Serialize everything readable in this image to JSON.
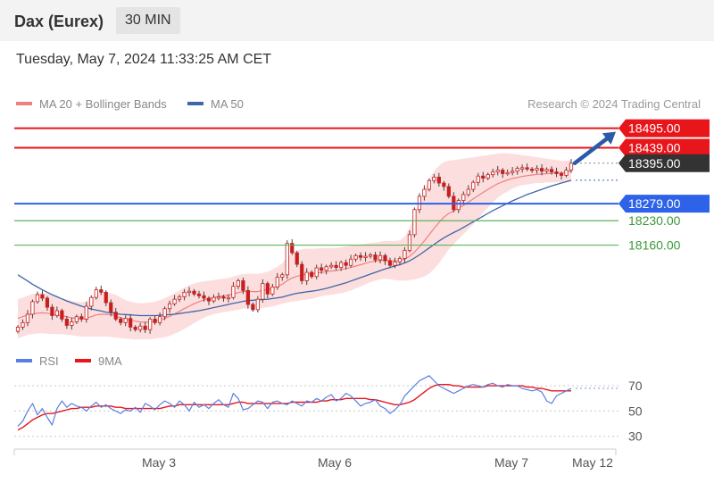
{
  "header": {
    "title": "Dax (Eurex)",
    "interval": "30 MIN"
  },
  "timestamp": "Tuesday, May 7, 2024 11:33:25 AM CET",
  "legend": {
    "ma20": "MA 20 + Bollinger Bands",
    "ma50": "MA 50",
    "rsi": "RSI",
    "rsi_ma": "9MA"
  },
  "credit": "Research © 2024 Trading Central",
  "colors": {
    "resistance": "#e8151b",
    "pivot": "#2e62e8",
    "support": "#5bb55b",
    "last_price": "#333333",
    "candle": "#c81e1e",
    "ma20": "#f08080",
    "ma50": "#3f66a8",
    "bollinger_fill": "#fbd3d3",
    "rsi": "#5b7fe0",
    "rsi_ma": "#e8151b",
    "arrow": "#2a5aa8"
  },
  "chart_data": [
    {
      "type": "candlestick",
      "title": "Dax (Eurex)",
      "x_ticks": [
        "May 3",
        "May 6",
        "May 7",
        "May 12"
      ],
      "ylim": [
        17880,
        18530
      ],
      "levels": [
        {
          "label": "18495.00",
          "value": 18495,
          "kind": "resistance",
          "style": "solid"
        },
        {
          "label": "18439.00",
          "value": 18439,
          "kind": "resistance",
          "style": "solid"
        },
        {
          "label": "18395.00",
          "value": 18395,
          "kind": "last",
          "style": "dotted"
        },
        {
          "label": "18279.00",
          "value": 18279,
          "kind": "pivot",
          "style": "solid"
        },
        {
          "label": "18230.00",
          "value": 18230,
          "kind": "support",
          "style": "solid"
        },
        {
          "label": "18160.00",
          "value": 18160,
          "kind": "support",
          "style": "solid"
        }
      ],
      "close": [
        17925,
        17938,
        17962,
        17998,
        18018,
        18008,
        17982,
        17958,
        17972,
        17948,
        17930,
        17940,
        17955,
        17948,
        17985,
        18010,
        18032,
        18025,
        17995,
        17968,
        17948,
        17938,
        17950,
        17925,
        17918,
        17928,
        17918,
        17948,
        17938,
        17955,
        17978,
        17992,
        18005,
        18012,
        18025,
        18028,
        18020,
        18015,
        18008,
        18000,
        18010,
        18012,
        18008,
        18010,
        18042,
        18058,
        18030,
        17990,
        17975,
        18005,
        18050,
        18020,
        18040,
        18068,
        18075,
        18165,
        18138,
        18105,
        18058,
        18082,
        18070,
        18095,
        18088,
        18098,
        18102,
        18096,
        18110,
        18102,
        18120,
        18130,
        18125,
        18128,
        18132,
        18118,
        18130,
        18115,
        18102,
        18112,
        18122,
        18145,
        18190,
        18262,
        18300,
        18320,
        18345,
        18355,
        18338,
        18328,
        18300,
        18262,
        18288,
        18305,
        18320,
        18340,
        18358,
        18352,
        18362,
        18370,
        18375,
        18365,
        18368,
        18372,
        18380,
        18382,
        18378,
        18375,
        18380,
        18372,
        18377,
        18370,
        18365,
        18360,
        18375,
        18395
      ],
      "ma20": [
        17950,
        17955,
        17960,
        17963,
        17965,
        17966,
        17965,
        17962,
        17960,
        17958,
        17955,
        17952,
        17950,
        17948,
        17950,
        17955,
        17960,
        17962,
        17962,
        17960,
        17957,
        17952,
        17948,
        17945,
        17942,
        17940,
        17939,
        17940,
        17942,
        17945,
        17950,
        17956,
        17963,
        17970,
        17978,
        17985,
        17992,
        17998,
        18003,
        18007,
        18010,
        18013,
        18015,
        18017,
        18020,
        18024,
        18027,
        18028,
        18027,
        18027,
        18030,
        18032,
        18036,
        18042,
        18048,
        18058,
        18066,
        18071,
        18074,
        18077,
        18078,
        18080,
        18082,
        18084,
        18086,
        18087,
        18090,
        18093,
        18096,
        18100,
        18104,
        18108,
        18112,
        18114,
        18116,
        18117,
        18116,
        18115,
        18116,
        18120,
        18128,
        18140,
        18155,
        18172,
        18190,
        18208,
        18225,
        18240,
        18251,
        18258,
        18266,
        18274,
        18283,
        18293,
        18302,
        18311,
        18320,
        18328,
        18336,
        18342,
        18347,
        18351,
        18354,
        18357,
        18359,
        18361,
        18363,
        18364,
        18365,
        18366,
        18367,
        18367,
        18369,
        18373
      ],
      "bollinger_upper": [
        18005,
        18010,
        18015,
        18020,
        18022,
        18024,
        18022,
        18018,
        18012,
        18008,
        18004,
        18000,
        17998,
        17996,
        18000,
        18010,
        18020,
        18025,
        18025,
        18022,
        18018,
        18010,
        18002,
        17998,
        17995,
        17994,
        17994,
        17996,
        17998,
        18002,
        18008,
        18015,
        18022,
        18030,
        18038,
        18045,
        18050,
        18054,
        18056,
        18058,
        18060,
        18062,
        18064,
        18066,
        18070,
        18074,
        18077,
        18078,
        18078,
        18078,
        18080,
        18084,
        18090,
        18098,
        18108,
        18125,
        18138,
        18144,
        18148,
        18150,
        18150,
        18150,
        18152,
        18152,
        18152,
        18152,
        18154,
        18156,
        18158,
        18160,
        18162,
        18164,
        18166,
        18168,
        18170,
        18172,
        18172,
        18172,
        18174,
        18185,
        18210,
        18245,
        18285,
        18320,
        18350,
        18372,
        18388,
        18398,
        18402,
        18404,
        18406,
        18408,
        18410,
        18412,
        18414,
        18416,
        18418,
        18420,
        18422,
        18423,
        18423,
        18422,
        18420,
        18418,
        18416,
        18414,
        18412,
        18410,
        18408,
        18406,
        18404,
        18402,
        18402,
        18404
      ],
      "bollinger_lower": [
        17892,
        17898,
        17903,
        17905,
        17907,
        17907,
        17906,
        17905,
        17905,
        17905,
        17903,
        17902,
        17900,
        17898,
        17898,
        17898,
        17898,
        17898,
        17898,
        17897,
        17895,
        17893,
        17892,
        17891,
        17890,
        17890,
        17890,
        17890,
        17892,
        17894,
        17896,
        17900,
        17906,
        17912,
        17920,
        17928,
        17937,
        17945,
        17952,
        17958,
        17962,
        17965,
        17968,
        17970,
        17972,
        17975,
        17978,
        17979,
        17978,
        17978,
        17980,
        17982,
        17984,
        17988,
        17992,
        17996,
        17998,
        18000,
        18002,
        18004,
        18006,
        18010,
        18014,
        18016,
        18018,
        18020,
        18022,
        18026,
        18030,
        18036,
        18042,
        18048,
        18054,
        18058,
        18062,
        18064,
        18062,
        18060,
        18058,
        18058,
        18060,
        18062,
        18065,
        18070,
        18078,
        18092,
        18108,
        18128,
        18148,
        18162,
        18178,
        18192,
        18206,
        18220,
        18236,
        18252,
        18268,
        18282,
        18296,
        18306,
        18314,
        18322,
        18328,
        18332,
        18334,
        18336,
        18338,
        18338,
        18340,
        18340,
        18340,
        18340,
        18340,
        18342
      ],
      "ma50": [
        18075,
        18066,
        18057,
        18048,
        18040,
        18032,
        18025,
        18018,
        18012,
        18006,
        18000,
        17995,
        17990,
        17985,
        17981,
        17977,
        17974,
        17971,
        17968,
        17966,
        17964,
        17962,
        17961,
        17960,
        17959,
        17958,
        17958,
        17958,
        17958,
        17959,
        17960,
        17961,
        17962,
        17964,
        17966,
        17968,
        17970,
        17972,
        17975,
        17978,
        17981,
        17984,
        17987,
        17990,
        17993,
        17996,
        17999,
        18001,
        18002,
        18003,
        18004,
        18005,
        18007,
        18009,
        18011,
        18015,
        18019,
        18022,
        18024,
        18026,
        18028,
        18030,
        18033,
        18036,
        18040,
        18044,
        18048,
        18052,
        18057,
        18062,
        18067,
        18072,
        18077,
        18082,
        18087,
        18092,
        18096,
        18100,
        18104,
        18109,
        18115,
        18123,
        18132,
        18142,
        18152,
        18162,
        18172,
        18181,
        18189,
        18196,
        18203,
        18211,
        18219,
        18227,
        18235,
        18243,
        18251,
        18259,
        18266,
        18273,
        18280,
        18287,
        18293,
        18299,
        18305,
        18310,
        18315,
        18320,
        18325,
        18330,
        18334,
        18338,
        18342,
        18346
      ]
    },
    {
      "type": "line",
      "title": "RSI",
      "ylim": [
        22,
        80
      ],
      "y_ticks": [
        70,
        50,
        30
      ],
      "reference_lines": [
        70,
        50,
        30
      ],
      "series": [
        {
          "name": "RSI",
          "values": [
            38,
            42,
            50,
            56,
            47,
            52,
            45,
            39,
            52,
            58,
            53,
            56,
            54,
            53,
            50,
            54,
            57,
            53,
            55,
            52,
            50,
            48,
            51,
            50,
            53,
            49,
            56,
            54,
            51,
            55,
            58,
            56,
            53,
            58,
            55,
            50,
            57,
            53,
            55,
            52,
            56,
            59,
            55,
            53,
            64,
            60,
            51,
            52,
            55,
            58,
            57,
            52,
            57,
            58,
            56,
            55,
            58,
            56,
            54,
            58,
            57,
            60,
            58,
            61,
            63,
            58,
            60,
            64,
            62,
            58,
            54,
            56,
            57,
            59,
            54,
            52,
            48,
            51,
            55,
            62,
            66,
            70,
            74,
            76,
            78,
            74,
            70,
            68,
            66,
            64,
            66,
            68,
            70,
            71,
            70,
            69,
            71,
            72,
            70,
            69,
            71,
            70,
            70,
            68,
            67,
            66,
            67,
            65,
            58,
            56,
            62,
            64,
            66,
            68
          ]
        },
        {
          "name": "9MA",
          "values": [
            35,
            37,
            40,
            43,
            45,
            47,
            48,
            48,
            49,
            50,
            51,
            52,
            52,
            53,
            53,
            53,
            54,
            54,
            54,
            54,
            53,
            53,
            52,
            52,
            52,
            52,
            52,
            52,
            52,
            52,
            53,
            54,
            54,
            55,
            55,
            55,
            55,
            55,
            55,
            55,
            55,
            55,
            55,
            55,
            56,
            57,
            57,
            56,
            56,
            56,
            56,
            56,
            56,
            56,
            56,
            56,
            57,
            57,
            57,
            57,
            57,
            57,
            58,
            58,
            59,
            59,
            59,
            60,
            60,
            60,
            60,
            60,
            59,
            59,
            58,
            57,
            56,
            55,
            55,
            56,
            57,
            59,
            62,
            65,
            68,
            70,
            71,
            71,
            71,
            70,
            70,
            69,
            69,
            69,
            69,
            69,
            70,
            70,
            70,
            70,
            70,
            70,
            70,
            70,
            69,
            69,
            68,
            68,
            67,
            66,
            66,
            66,
            66,
            66
          ]
        }
      ]
    }
  ]
}
